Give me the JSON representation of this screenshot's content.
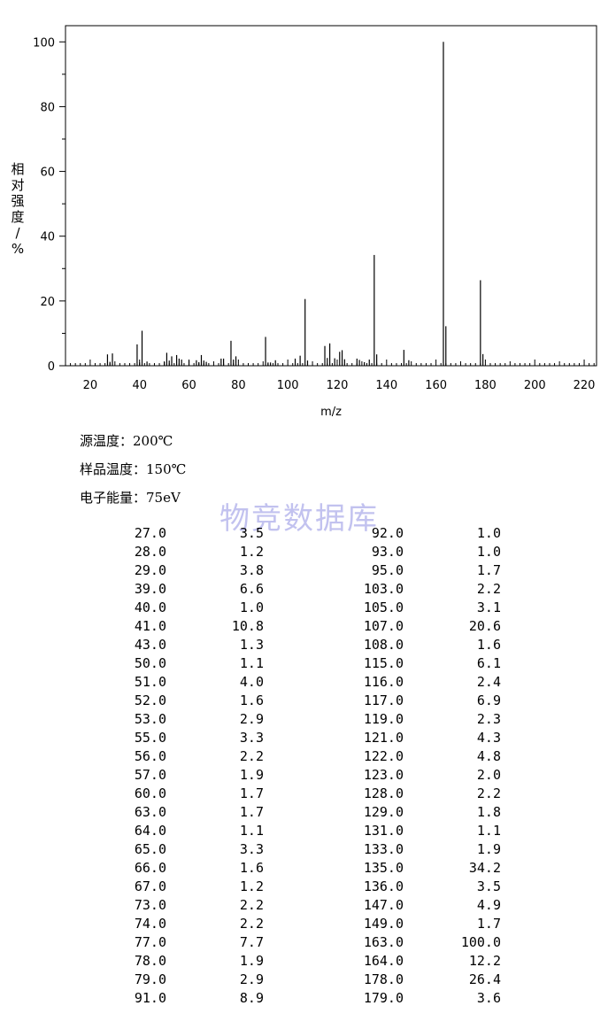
{
  "chart_data": {
    "type": "bar",
    "title": "",
    "xlabel": "m/z",
    "ylabel": "相对强度/%",
    "xlim": [
      10,
      225
    ],
    "ylim": [
      0,
      105
    ],
    "xticks": [
      20,
      40,
      60,
      80,
      100,
      120,
      140,
      160,
      180,
      200,
      220
    ],
    "yticks": [
      0,
      20,
      40,
      60,
      80,
      100
    ],
    "grid": false,
    "peaks": [
      {
        "mz": 27.0,
        "intensity": 3.5
      },
      {
        "mz": 28.0,
        "intensity": 1.2
      },
      {
        "mz": 29.0,
        "intensity": 3.8
      },
      {
        "mz": 39.0,
        "intensity": 6.6
      },
      {
        "mz": 40.0,
        "intensity": 1.0
      },
      {
        "mz": 41.0,
        "intensity": 10.8
      },
      {
        "mz": 43.0,
        "intensity": 1.3
      },
      {
        "mz": 50.0,
        "intensity": 1.1
      },
      {
        "mz": 51.0,
        "intensity": 4.0
      },
      {
        "mz": 52.0,
        "intensity": 1.6
      },
      {
        "mz": 53.0,
        "intensity": 2.9
      },
      {
        "mz": 55.0,
        "intensity": 3.3
      },
      {
        "mz": 56.0,
        "intensity": 2.2
      },
      {
        "mz": 57.0,
        "intensity": 1.9
      },
      {
        "mz": 60.0,
        "intensity": 1.7
      },
      {
        "mz": 63.0,
        "intensity": 1.7
      },
      {
        "mz": 64.0,
        "intensity": 1.1
      },
      {
        "mz": 65.0,
        "intensity": 3.3
      },
      {
        "mz": 66.0,
        "intensity": 1.6
      },
      {
        "mz": 67.0,
        "intensity": 1.2
      },
      {
        "mz": 73.0,
        "intensity": 2.2
      },
      {
        "mz": 74.0,
        "intensity": 2.2
      },
      {
        "mz": 77.0,
        "intensity": 7.7
      },
      {
        "mz": 78.0,
        "intensity": 1.9
      },
      {
        "mz": 79.0,
        "intensity": 2.9
      },
      {
        "mz": 91.0,
        "intensity": 8.9
      },
      {
        "mz": 92.0,
        "intensity": 1.0
      },
      {
        "mz": 93.0,
        "intensity": 1.0
      },
      {
        "mz": 95.0,
        "intensity": 1.7
      },
      {
        "mz": 103.0,
        "intensity": 2.2
      },
      {
        "mz": 105.0,
        "intensity": 3.1
      },
      {
        "mz": 107.0,
        "intensity": 20.6
      },
      {
        "mz": 108.0,
        "intensity": 1.6
      },
      {
        "mz": 115.0,
        "intensity": 6.1
      },
      {
        "mz": 116.0,
        "intensity": 2.4
      },
      {
        "mz": 117.0,
        "intensity": 6.9
      },
      {
        "mz": 119.0,
        "intensity": 2.3
      },
      {
        "mz": 121.0,
        "intensity": 4.3
      },
      {
        "mz": 122.0,
        "intensity": 4.8
      },
      {
        "mz": 123.0,
        "intensity": 2.0
      },
      {
        "mz": 128.0,
        "intensity": 2.2
      },
      {
        "mz": 129.0,
        "intensity": 1.8
      },
      {
        "mz": 131.0,
        "intensity": 1.1
      },
      {
        "mz": 133.0,
        "intensity": 1.9
      },
      {
        "mz": 135.0,
        "intensity": 34.2
      },
      {
        "mz": 136.0,
        "intensity": 3.5
      },
      {
        "mz": 147.0,
        "intensity": 4.9
      },
      {
        "mz": 149.0,
        "intensity": 1.7
      },
      {
        "mz": 163.0,
        "intensity": 100.0
      },
      {
        "mz": 164.0,
        "intensity": 12.2
      },
      {
        "mz": 178.0,
        "intensity": 26.4
      },
      {
        "mz": 179.0,
        "intensity": 3.6
      }
    ]
  },
  "ylabel_chars": [
    "相",
    "对",
    "强",
    "度",
    "/",
    "%"
  ],
  "conditions": [
    "源温度：200℃",
    "样品温度：150℃",
    "电子能量：75eV"
  ],
  "watermark": "物竞数据库",
  "table": {
    "rows": [
      [
        "27.0",
        "3.5",
        "92.0",
        "1.0"
      ],
      [
        "28.0",
        "1.2",
        "93.0",
        "1.0"
      ],
      [
        "29.0",
        "3.8",
        "95.0",
        "1.7"
      ],
      [
        "39.0",
        "6.6",
        "103.0",
        "2.2"
      ],
      [
        "40.0",
        "1.0",
        "105.0",
        "3.1"
      ],
      [
        "41.0",
        "10.8",
        "107.0",
        "20.6"
      ],
      [
        "43.0",
        "1.3",
        "108.0",
        "1.6"
      ],
      [
        "50.0",
        "1.1",
        "115.0",
        "6.1"
      ],
      [
        "51.0",
        "4.0",
        "116.0",
        "2.4"
      ],
      [
        "52.0",
        "1.6",
        "117.0",
        "6.9"
      ],
      [
        "53.0",
        "2.9",
        "119.0",
        "2.3"
      ],
      [
        "55.0",
        "3.3",
        "121.0",
        "4.3"
      ],
      [
        "56.0",
        "2.2",
        "122.0",
        "4.8"
      ],
      [
        "57.0",
        "1.9",
        "123.0",
        "2.0"
      ],
      [
        "60.0",
        "1.7",
        "128.0",
        "2.2"
      ],
      [
        "63.0",
        "1.7",
        "129.0",
        "1.8"
      ],
      [
        "64.0",
        "1.1",
        "131.0",
        "1.1"
      ],
      [
        "65.0",
        "3.3",
        "133.0",
        "1.9"
      ],
      [
        "66.0",
        "1.6",
        "135.0",
        "34.2"
      ],
      [
        "67.0",
        "1.2",
        "136.0",
        "3.5"
      ],
      [
        "73.0",
        "2.2",
        "147.0",
        "4.9"
      ],
      [
        "74.0",
        "2.2",
        "149.0",
        "1.7"
      ],
      [
        "77.0",
        "7.7",
        "163.0",
        "100.0"
      ],
      [
        "78.0",
        "1.9",
        "164.0",
        "12.2"
      ],
      [
        "79.0",
        "2.9",
        "178.0",
        "26.4"
      ],
      [
        "91.0",
        "8.9",
        "179.0",
        "3.6"
      ]
    ]
  }
}
